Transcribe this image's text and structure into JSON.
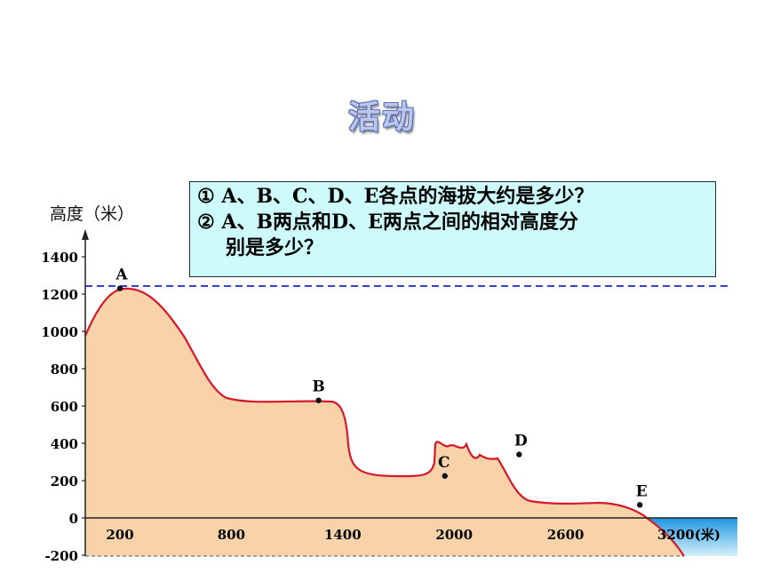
{
  "title": "活动",
  "questions": {
    "q1": "① A、B、C、D、E各点的海拔大约是多少？",
    "q2a": "② A、B两点和D、E两点之间的相对高度分",
    "q2b": "别是多少？"
  },
  "chart": {
    "y_axis_title": "高度（米）",
    "y_ticks": [
      "1400",
      "1200",
      "1000",
      "800",
      "600",
      "400",
      "200",
      "0",
      "-200"
    ],
    "x_ticks": [
      "200",
      "800",
      "1400",
      "2000",
      "2600",
      "3200(米)"
    ],
    "points": [
      {
        "label": "A",
        "x": 200,
        "y": 1230
      },
      {
        "label": "B",
        "x": 1270,
        "y": 630
      },
      {
        "label": "C",
        "x": 1950,
        "y": 225
      },
      {
        "label": "D",
        "x": 2350,
        "y": 340
      },
      {
        "label": "E",
        "x": 3000,
        "y": 70
      }
    ],
    "reference_line_elevation": 1240
  },
  "colors": {
    "terrain_fill": "#f8d2a8",
    "terrain_line": "#d7182a",
    "sea_top": "#1e96e0",
    "sea_bottom": "#d6f0fb",
    "dashed_ref": "#3344cc",
    "box_bg": "#cdfbfb"
  }
}
